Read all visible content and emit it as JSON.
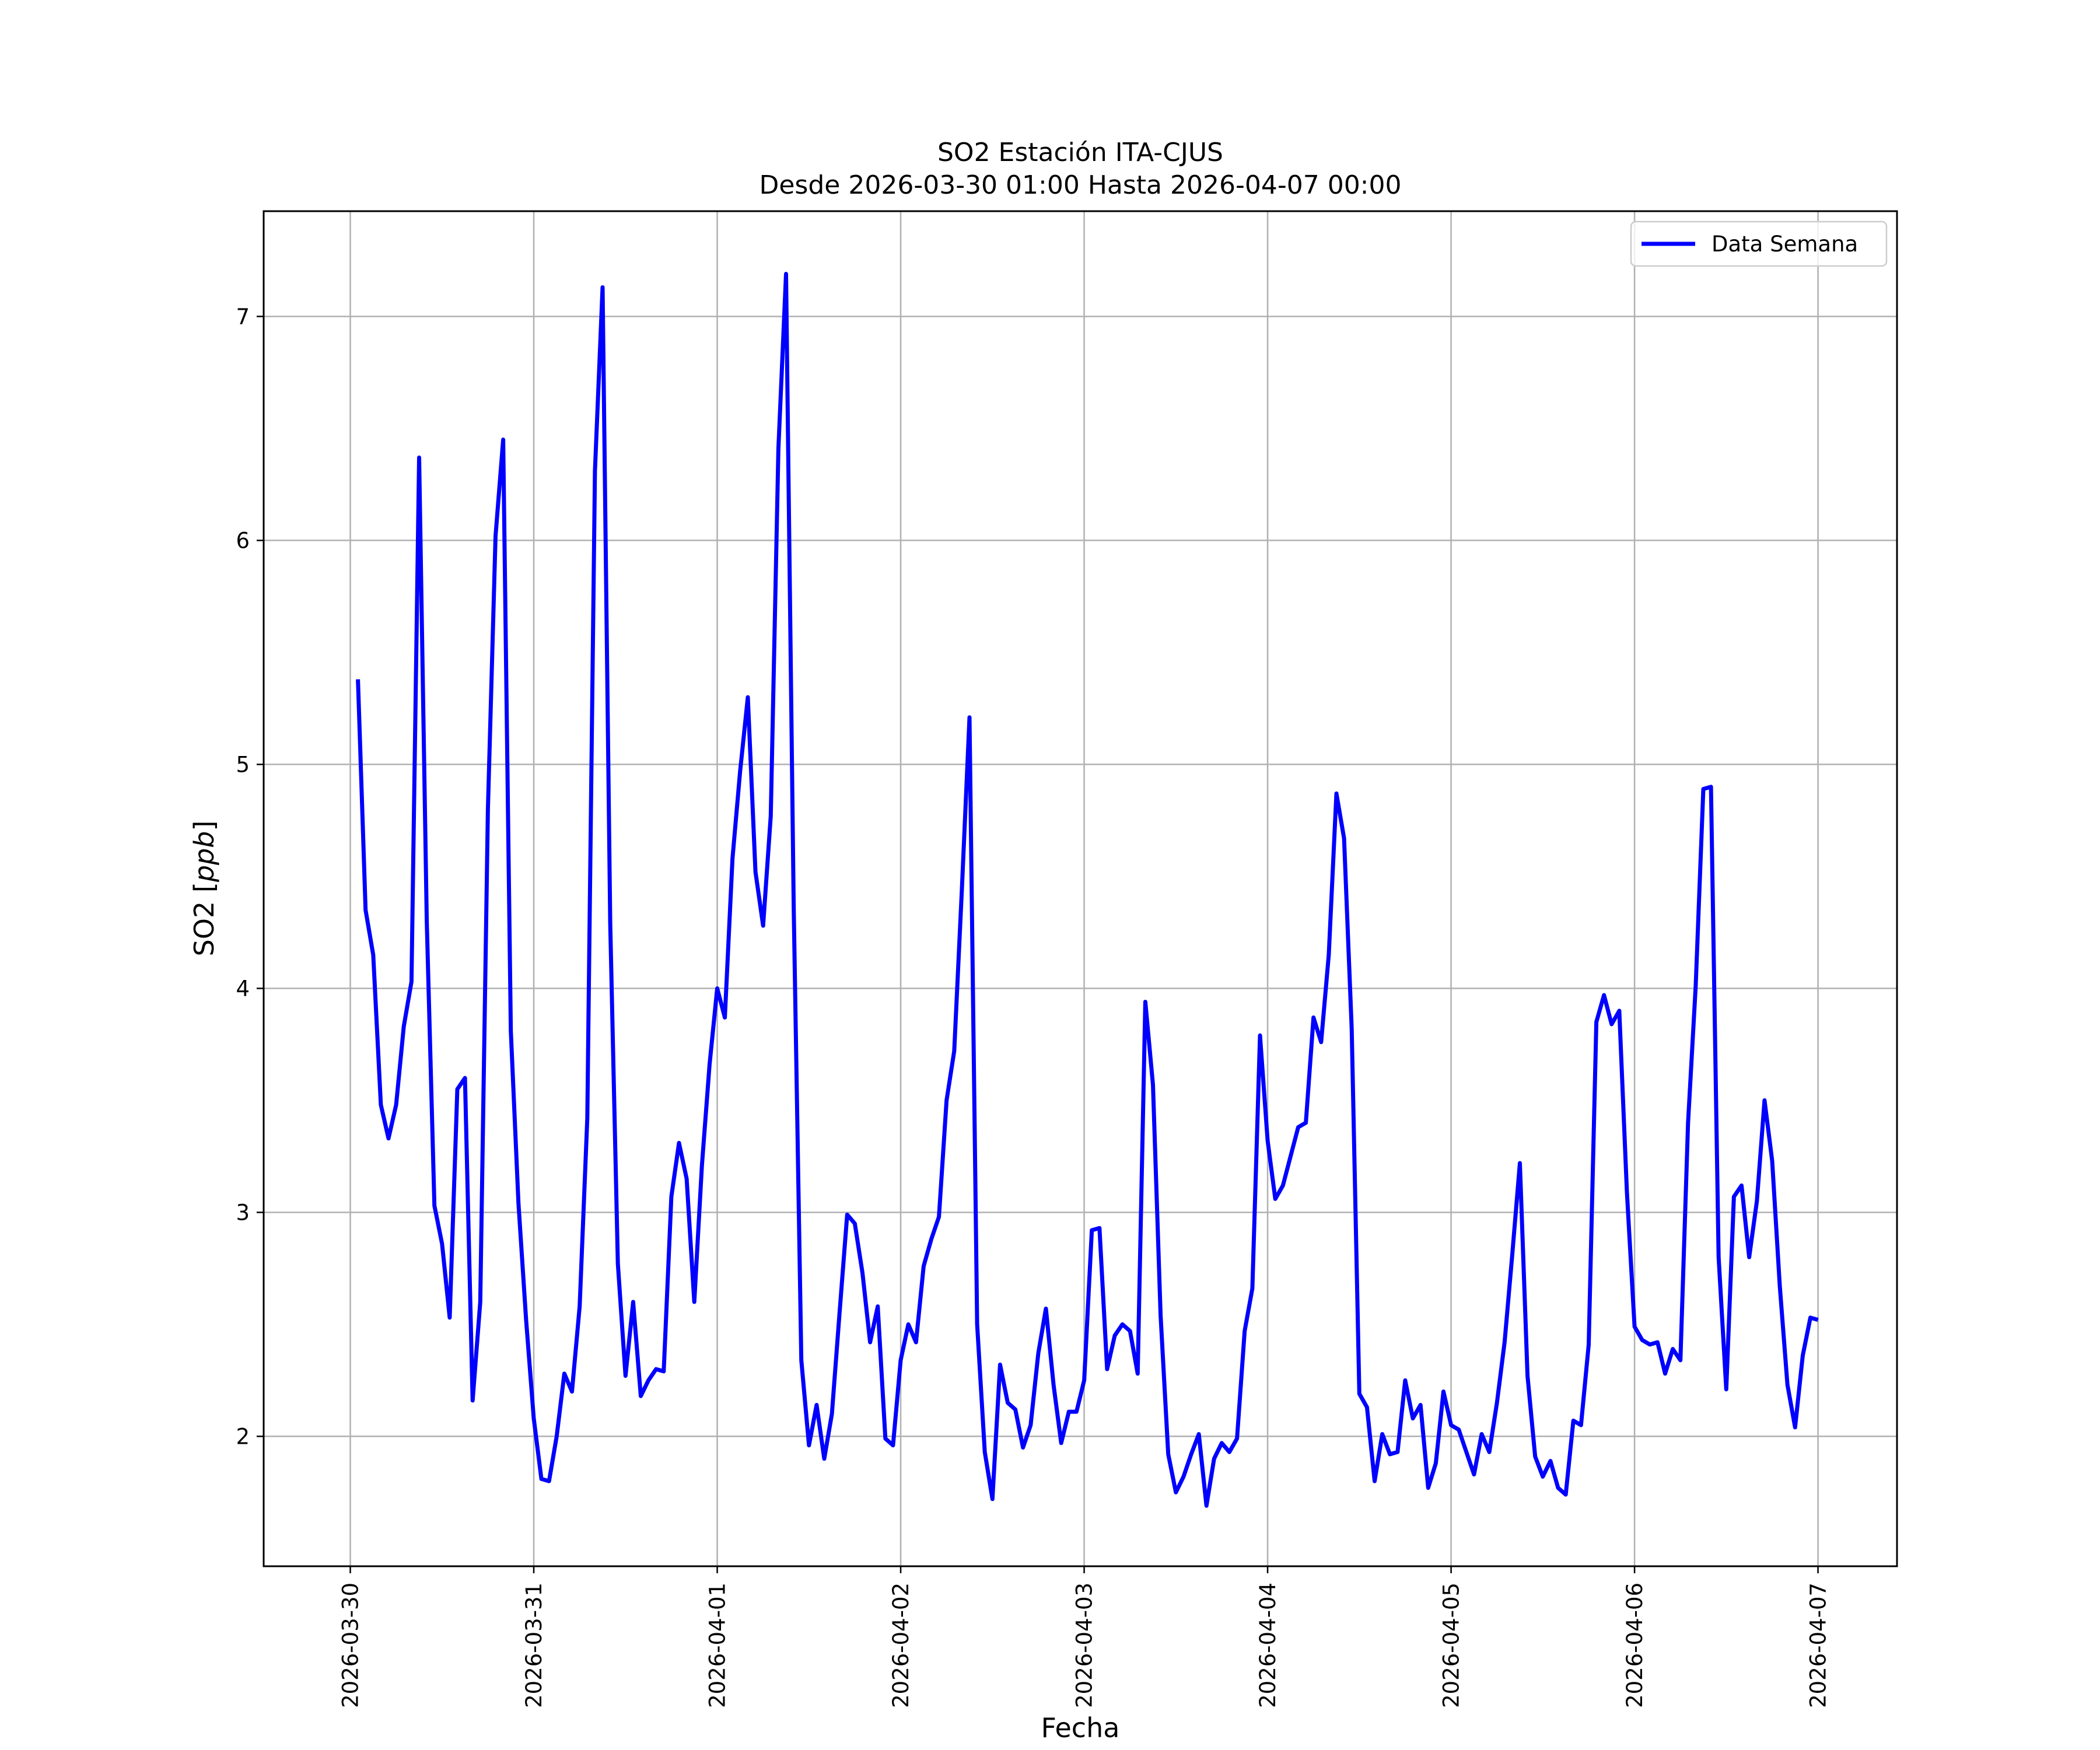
{
  "chart_data": {
    "type": "line",
    "title": "SO2 Estación ITA-CJUS",
    "subtitle": "Desde 2026-03-30 01:00 Hasta 2026-04-07 00:00",
    "xlabel": "Fecha",
    "ylabel_prefix": "SO2 [",
    "ylabel_unit": "ppb",
    "ylabel_suffix": "]",
    "x_ticks": [
      "2026-03-30",
      "2026-03-31",
      "2026-04-01",
      "2026-04-02",
      "2026-04-03",
      "2026-04-04",
      "2026-04-05",
      "2026-04-06",
      "2026-04-07"
    ],
    "y_ticks": [
      2,
      3,
      4,
      5,
      6,
      7
    ],
    "xlim": [
      "2026-03-29 12:40",
      "2026-04-07 10:20"
    ],
    "ylim": [
      1.42,
      7.47
    ],
    "grid": true,
    "legend_position": "top-right",
    "line_color": "#0000ff",
    "series": [
      {
        "name": "Data Semana",
        "x": [
          "2026-03-30 01:00",
          "2026-03-30 02:00",
          "2026-03-30 03:00",
          "2026-03-30 04:00",
          "2026-03-30 05:00",
          "2026-03-30 06:00",
          "2026-03-30 07:00",
          "2026-03-30 08:00",
          "2026-03-30 09:00",
          "2026-03-30 10:00",
          "2026-03-30 11:00",
          "2026-03-30 12:00",
          "2026-03-30 13:00",
          "2026-03-30 14:00",
          "2026-03-30 15:00",
          "2026-03-30 16:00",
          "2026-03-30 17:00",
          "2026-03-30 18:00",
          "2026-03-30 19:00",
          "2026-03-30 20:00",
          "2026-03-30 21:00",
          "2026-03-30 22:00",
          "2026-03-30 23:00",
          "2026-03-31 00:00",
          "2026-03-31 01:00",
          "2026-03-31 02:00",
          "2026-03-31 03:00",
          "2026-03-31 04:00",
          "2026-03-31 05:00",
          "2026-03-31 06:00",
          "2026-03-31 07:00",
          "2026-03-31 08:00",
          "2026-03-31 09:00",
          "2026-03-31 10:00",
          "2026-03-31 11:00",
          "2026-03-31 12:00",
          "2026-03-31 13:00",
          "2026-03-31 14:00",
          "2026-03-31 15:00",
          "2026-03-31 16:00",
          "2026-03-31 17:00",
          "2026-03-31 18:00",
          "2026-03-31 19:00",
          "2026-03-31 20:00",
          "2026-03-31 21:00",
          "2026-03-31 22:00",
          "2026-03-31 23:00",
          "2026-04-01 00:00",
          "2026-04-01 01:00",
          "2026-04-01 02:00",
          "2026-04-01 03:00",
          "2026-04-01 04:00",
          "2026-04-01 05:00",
          "2026-04-01 06:00",
          "2026-04-01 07:00",
          "2026-04-01 08:00",
          "2026-04-01 09:00",
          "2026-04-01 10:00",
          "2026-04-01 11:00",
          "2026-04-01 12:00",
          "2026-04-01 13:00",
          "2026-04-01 14:00",
          "2026-04-01 15:00",
          "2026-04-01 16:00",
          "2026-04-01 17:00",
          "2026-04-01 18:00",
          "2026-04-01 19:00",
          "2026-04-01 20:00",
          "2026-04-01 21:00",
          "2026-04-01 22:00",
          "2026-04-01 23:00",
          "2026-04-02 00:00",
          "2026-04-02 01:00",
          "2026-04-02 02:00",
          "2026-04-02 03:00",
          "2026-04-02 04:00",
          "2026-04-02 05:00",
          "2026-04-02 06:00",
          "2026-04-02 07:00",
          "2026-04-02 08:00",
          "2026-04-02 09:00",
          "2026-04-02 10:00",
          "2026-04-02 11:00",
          "2026-04-02 12:00",
          "2026-04-02 13:00",
          "2026-04-02 14:00",
          "2026-04-02 15:00",
          "2026-04-02 16:00",
          "2026-04-02 17:00",
          "2026-04-02 18:00",
          "2026-04-02 19:00",
          "2026-04-02 20:00",
          "2026-04-02 21:00",
          "2026-04-02 22:00",
          "2026-04-02 23:00",
          "2026-04-03 00:00",
          "2026-04-03 01:00",
          "2026-04-03 02:00",
          "2026-04-03 03:00",
          "2026-04-03 04:00",
          "2026-04-03 05:00",
          "2026-04-03 06:00",
          "2026-04-03 07:00",
          "2026-04-03 08:00",
          "2026-04-03 09:00",
          "2026-04-03 10:00",
          "2026-04-03 11:00",
          "2026-04-03 12:00",
          "2026-04-03 13:00",
          "2026-04-03 14:00",
          "2026-04-03 15:00",
          "2026-04-03 16:00",
          "2026-04-03 17:00",
          "2026-04-03 18:00",
          "2026-04-03 19:00",
          "2026-04-03 20:00",
          "2026-04-03 21:00",
          "2026-04-03 22:00",
          "2026-04-03 23:00",
          "2026-04-04 00:00",
          "2026-04-04 01:00",
          "2026-04-04 02:00",
          "2026-04-04 03:00",
          "2026-04-04 04:00",
          "2026-04-04 05:00",
          "2026-04-04 06:00",
          "2026-04-04 07:00",
          "2026-04-04 08:00",
          "2026-04-04 09:00",
          "2026-04-04 10:00",
          "2026-04-04 11:00",
          "2026-04-04 12:00",
          "2026-04-04 13:00",
          "2026-04-04 14:00",
          "2026-04-04 15:00",
          "2026-04-04 16:00",
          "2026-04-04 17:00",
          "2026-04-04 18:00",
          "2026-04-04 19:00",
          "2026-04-04 20:00",
          "2026-04-04 21:00",
          "2026-04-04 22:00",
          "2026-04-04 23:00",
          "2026-04-05 00:00",
          "2026-04-05 01:00",
          "2026-04-05 02:00",
          "2026-04-05 03:00",
          "2026-04-05 04:00",
          "2026-04-05 05:00",
          "2026-04-05 06:00",
          "2026-04-05 07:00",
          "2026-04-05 08:00",
          "2026-04-05 09:00",
          "2026-04-05 10:00",
          "2026-04-05 11:00",
          "2026-04-05 12:00",
          "2026-04-05 13:00",
          "2026-04-05 14:00",
          "2026-04-05 15:00",
          "2026-04-05 16:00",
          "2026-04-05 17:00",
          "2026-04-05 18:00",
          "2026-04-05 19:00",
          "2026-04-05 20:00",
          "2026-04-05 21:00",
          "2026-04-05 22:00",
          "2026-04-05 23:00",
          "2026-04-06 00:00",
          "2026-04-06 01:00",
          "2026-04-06 02:00",
          "2026-04-06 03:00",
          "2026-04-06 04:00",
          "2026-04-06 05:00",
          "2026-04-06 06:00",
          "2026-04-06 07:00",
          "2026-04-06 08:00",
          "2026-04-06 09:00",
          "2026-04-06 10:00",
          "2026-04-06 11:00",
          "2026-04-06 12:00",
          "2026-04-06 13:00",
          "2026-04-06 14:00",
          "2026-04-06 15:00",
          "2026-04-06 16:00",
          "2026-04-06 17:00",
          "2026-04-06 18:00",
          "2026-04-06 19:00",
          "2026-04-06 20:00",
          "2026-04-06 21:00",
          "2026-04-06 22:00",
          "2026-04-06 23:00",
          "2026-04-07 00:00"
        ],
        "values": [
          5.38,
          4.35,
          4.15,
          3.48,
          3.33,
          3.48,
          3.83,
          4.03,
          6.37,
          4.3,
          3.03,
          2.86,
          2.53,
          3.55,
          3.6,
          2.16,
          2.6,
          4.8,
          6.02,
          6.45,
          3.81,
          3.04,
          2.52,
          2.08,
          1.81,
          1.8,
          2.0,
          2.28,
          2.2,
          2.58,
          3.42,
          6.31,
          7.13,
          4.29,
          2.77,
          2.27,
          2.6,
          2.18,
          2.25,
          2.3,
          2.29,
          3.07,
          3.31,
          3.15,
          2.6,
          3.21,
          3.66,
          4.0,
          3.87,
          4.58,
          4.97,
          5.3,
          4.52,
          4.28,
          4.77,
          6.41,
          7.19,
          4.37,
          2.34,
          1.96,
          2.14,
          1.9,
          2.1,
          2.55,
          2.99,
          2.95,
          2.73,
          2.42,
          2.58,
          1.99,
          1.96,
          2.34,
          2.5,
          2.42,
          2.76,
          2.88,
          2.98,
          3.5,
          3.72,
          4.44,
          5.21,
          2.5,
          1.93,
          1.72,
          2.32,
          2.15,
          2.12,
          1.95,
          2.05,
          2.37,
          2.57,
          2.23,
          1.97,
          2.11,
          2.11,
          2.25,
          2.92,
          2.93,
          2.3,
          2.45,
          2.5,
          2.47,
          2.28,
          3.94,
          3.57,
          2.54,
          1.92,
          1.75,
          1.82,
          1.92,
          2.01,
          1.69,
          1.9,
          1.97,
          1.93,
          1.99,
          2.47,
          2.66,
          3.79,
          3.32,
          3.06,
          3.12,
          3.25,
          3.38,
          3.4,
          3.87,
          3.76,
          4.15,
          4.87,
          4.67,
          3.82,
          2.19,
          2.13,
          1.8,
          2.01,
          1.92,
          1.93,
          2.25,
          2.08,
          2.14,
          1.77,
          1.88,
          2.2,
          2.05,
          2.03,
          1.93,
          1.83,
          2.01,
          1.93,
          2.15,
          2.42,
          2.81,
          3.22,
          2.27,
          1.91,
          1.82,
          1.89,
          1.77,
          1.74,
          2.07,
          2.05,
          2.41,
          3.85,
          3.97,
          3.84,
          3.9,
          3.09,
          2.49,
          2.43,
          2.41,
          2.42,
          2.28,
          2.39,
          2.34,
          3.4,
          4.01,
          4.89,
          4.9,
          2.8,
          2.21,
          3.07,
          3.12,
          2.8,
          3.05,
          3.5,
          3.23,
          2.67,
          2.23,
          2.04,
          2.36,
          2.53,
          2.52
        ]
      }
    ]
  }
}
